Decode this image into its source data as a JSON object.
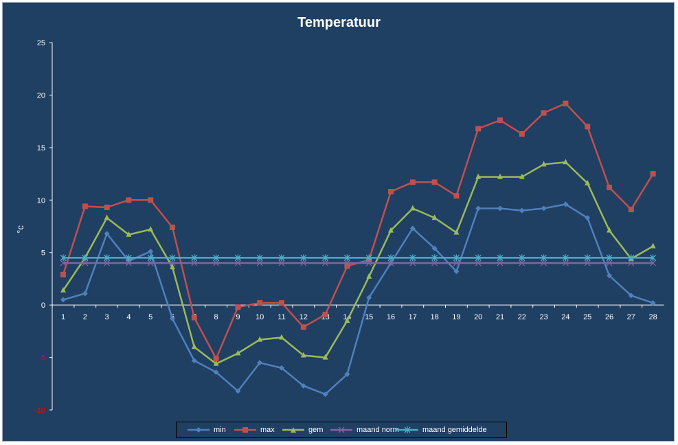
{
  "chart_data": {
    "type": "line",
    "title": "Temperatuur",
    "ylabel": "°c",
    "xlabel": "",
    "ylim": [
      -10,
      25
    ],
    "yticks": [
      -10,
      -5,
      0,
      5,
      10,
      15,
      20,
      25
    ],
    "categories": [
      "1",
      "2",
      "3",
      "4",
      "5",
      "6",
      "7",
      "8",
      "9",
      "10",
      "11",
      "12",
      "13",
      "14",
      "15",
      "16",
      "17",
      "18",
      "19",
      "20",
      "21",
      "22",
      "23",
      "24",
      "25",
      "26",
      "27",
      "28"
    ],
    "grid": false,
    "legend_position": "bottom",
    "series": [
      {
        "name": "min",
        "color": "#4f81bd",
        "marker": "diamond",
        "values": [
          0.5,
          1.1,
          6.8,
          4.2,
          5.1,
          -1.3,
          -5.3,
          -6.4,
          -8.2,
          -5.5,
          -6.0,
          -7.7,
          -8.5,
          -6.6,
          0.7,
          4.0,
          7.3,
          5.4,
          3.2,
          9.2,
          9.2,
          9.0,
          9.2,
          9.6,
          8.3,
          2.8,
          0.9,
          0.2
        ]
      },
      {
        "name": "max",
        "color": "#c0504d",
        "marker": "square",
        "values": [
          2.9,
          9.4,
          9.3,
          10.0,
          10.0,
          7.4,
          -1.2,
          -5.1,
          -0.2,
          0.2,
          0.2,
          -2.1,
          -0.9,
          3.7,
          4.3,
          10.8,
          11.7,
          11.7,
          10.4,
          16.8,
          17.6,
          16.3,
          18.3,
          19.2,
          17.0,
          11.2,
          9.1,
          12.5
        ]
      },
      {
        "name": "gem",
        "color": "#9bbb59",
        "marker": "triangle",
        "values": [
          1.4,
          4.5,
          8.3,
          6.7,
          7.2,
          3.6,
          -4.0,
          -5.6,
          -4.6,
          -3.3,
          -3.1,
          -4.8,
          -5.0,
          -1.5,
          2.7,
          7.1,
          9.2,
          8.3,
          6.9,
          12.2,
          12.2,
          12.2,
          13.4,
          13.6,
          11.6,
          7.1,
          4.4,
          5.6
        ]
      },
      {
        "name": "maand norm",
        "color": "#8064a2",
        "marker": "x",
        "values": [
          4.0,
          4.0,
          4.0,
          4.0,
          4.0,
          4.0,
          4.0,
          4.0,
          4.0,
          4.0,
          4.0,
          4.0,
          4.0,
          4.0,
          4.0,
          4.0,
          4.0,
          4.0,
          4.0,
          4.0,
          4.0,
          4.0,
          4.0,
          4.0,
          4.0,
          4.0,
          4.0,
          4.0
        ]
      },
      {
        "name": "maand gemiddelde",
        "color": "#4bacc6",
        "marker": "star",
        "values": [
          4.5,
          4.5,
          4.5,
          4.5,
          4.5,
          4.5,
          4.5,
          4.5,
          4.5,
          4.5,
          4.5,
          4.5,
          4.5,
          4.5,
          4.5,
          4.5,
          4.5,
          4.5,
          4.5,
          4.5,
          4.5,
          4.5,
          4.5,
          4.5,
          4.5,
          4.5,
          4.5,
          4.5
        ]
      }
    ],
    "colors": {
      "background": "#1f3f63",
      "axis": "#ffffff",
      "tick_label": "#ffffff",
      "negative_tick_label": "#ff0000"
    }
  }
}
